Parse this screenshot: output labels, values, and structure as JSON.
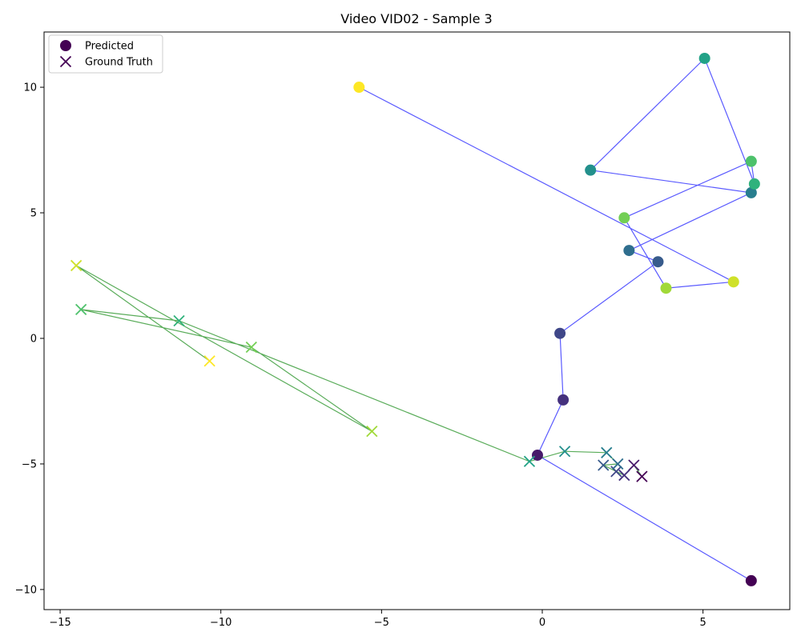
{
  "chart_data": {
    "type": "scatter",
    "title": "Video VID02 - Sample 3",
    "xlabel": "",
    "ylabel": "",
    "xlim": [
      -15.5,
      7.7
    ],
    "ylim": [
      -10.8,
      12.2
    ],
    "xticks": [
      -15,
      -10,
      -5,
      0,
      5
    ],
    "yticks": [
      -10,
      -5,
      0,
      5,
      10
    ],
    "grid": false,
    "legend_position": "top-left",
    "colormap": "viridis",
    "series": [
      {
        "name": "Predicted",
        "marker": "circle",
        "line_color": "#0000ff",
        "points": [
          {
            "x": 6.5,
            "y": -9.65
          },
          {
            "x": -0.15,
            "y": -4.65
          },
          {
            "x": 0.65,
            "y": -2.45
          },
          {
            "x": 0.55,
            "y": 0.2
          },
          {
            "x": 3.6,
            "y": 3.05
          },
          {
            "x": 2.7,
            "y": 3.5
          },
          {
            "x": 6.5,
            "y": 5.8
          },
          {
            "x": 1.5,
            "y": 6.7
          },
          {
            "x": 5.05,
            "y": 11.15
          },
          {
            "x": 6.6,
            "y": 6.15
          },
          {
            "x": 6.5,
            "y": 7.05
          },
          {
            "x": 2.55,
            "y": 4.8
          },
          {
            "x": 3.85,
            "y": 2.0
          },
          {
            "x": 5.95,
            "y": 2.25
          },
          {
            "x": -5.7,
            "y": 10.0
          }
        ]
      },
      {
        "name": "Ground Truth",
        "marker": "x",
        "line_color": "#008000",
        "points": [
          {
            "x": 3.1,
            "y": -5.5
          },
          {
            "x": 2.85,
            "y": -5.05
          },
          {
            "x": 2.55,
            "y": -5.45
          },
          {
            "x": 2.3,
            "y": -5.3
          },
          {
            "x": 1.9,
            "y": -5.05
          },
          {
            "x": 2.35,
            "y": -5.0
          },
          {
            "x": 2.0,
            "y": -4.55
          },
          {
            "x": 0.7,
            "y": -4.5
          },
          {
            "x": -0.4,
            "y": -4.9
          },
          {
            "x": -11.3,
            "y": 0.7
          },
          {
            "x": -14.35,
            "y": 1.15
          },
          {
            "x": -9.05,
            "y": -0.35
          },
          {
            "x": -5.3,
            "y": -3.7
          },
          {
            "x": -14.5,
            "y": 2.9
          },
          {
            "x": -10.35,
            "y": -0.9
          }
        ]
      }
    ]
  }
}
